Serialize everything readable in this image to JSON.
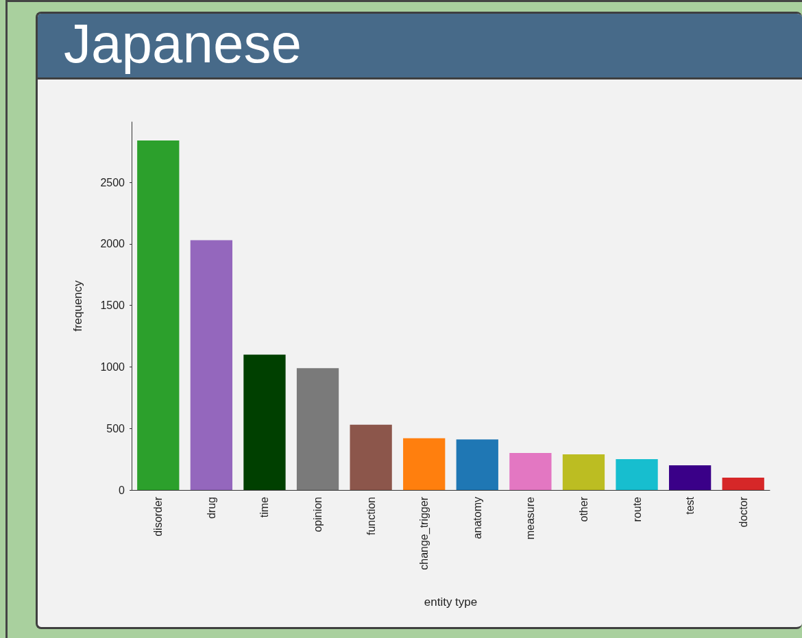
{
  "chart_data": {
    "type": "bar",
    "title": "Japanese",
    "xlabel": "entity type",
    "ylabel": "frequency",
    "categories": [
      "disorder",
      "drug",
      "time",
      "opinion",
      "function",
      "change_trigger",
      "anatomy",
      "measure",
      "other",
      "route",
      "test",
      "doctor"
    ],
    "values": [
      2840,
      2030,
      1100,
      990,
      530,
      420,
      410,
      300,
      290,
      250,
      200,
      100
    ],
    "colors": [
      "#2ca02c",
      "#9467bd",
      "#004000",
      "#7a7a7a",
      "#8c564b",
      "#ff7f0e",
      "#1f77b4",
      "#e377c2",
      "#bcbd22",
      "#17becf",
      "#3a0088",
      "#d62728"
    ],
    "ylim": [
      0,
      2990
    ],
    "yticks": [
      0,
      500,
      1000,
      1500,
      2000,
      2500
    ],
    "grid": false
  }
}
